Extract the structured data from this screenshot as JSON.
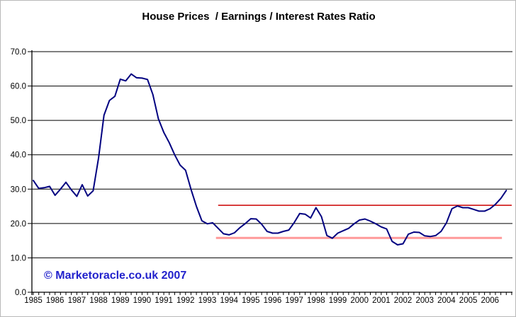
{
  "title": "House Prices  / Earnings / Interest Rates Ratio",
  "watermark": "© Marketoracle.co.uk 2007",
  "colors": {
    "series_line": "#000080",
    "resistance_line": "#cc0000",
    "support_line": "#ff9999",
    "gridline": "#000000",
    "axis": "#000000",
    "watermark_text": "#2222cc",
    "background": "#ffffff",
    "title_text": "#000000"
  },
  "chart_data": {
    "type": "line",
    "title": "House Prices  / Earnings / Interest Rates Ratio",
    "xlabel": "",
    "ylabel": "",
    "legend": "none",
    "grid": "horizontal",
    "x_axis": {
      "range": [
        1985.0,
        2007.0
      ],
      "tick_labels": [
        "1985",
        "1986",
        "1987",
        "1988",
        "1989",
        "1990",
        "1991",
        "1992",
        "1993",
        "1994",
        "1995",
        "1996",
        "1997",
        "1998",
        "1999",
        "2000",
        "2001",
        "2002",
        "2003",
        "2004",
        "2005",
        "2006"
      ],
      "minor_tick_interval_years": 0.25
    },
    "y_axis": {
      "range": [
        0,
        70
      ],
      "tick_labels": [
        "0.0",
        "10.0",
        "20.0",
        "30.0",
        "40.0",
        "50.0",
        "60.0",
        "70.0"
      ]
    },
    "series": [
      {
        "name": "house-prices-earnings-interest-rates-ratio",
        "color": "#000080",
        "stroke_width": 2,
        "x_start": 1985.0,
        "x_step": 0.25,
        "values": [
          32.5,
          30.2,
          30.4,
          30.8,
          28.2,
          30.0,
          32.0,
          29.8,
          27.9,
          31.3,
          28.0,
          29.5,
          39.0,
          51.5,
          55.8,
          57.0,
          62.0,
          61.5,
          63.5,
          62.4,
          62.3,
          61.9,
          57.5,
          50.5,
          46.5,
          43.5,
          40.0,
          37.0,
          35.5,
          30.0,
          25.0,
          20.8,
          19.9,
          20.2,
          18.6,
          17.0,
          16.7,
          17.3,
          18.8,
          20.0,
          21.4,
          21.3,
          19.8,
          17.7,
          17.2,
          17.2,
          17.7,
          18.1,
          20.3,
          22.9,
          22.7,
          21.6,
          24.6,
          22.0,
          16.5,
          15.7,
          17.2,
          17.9,
          18.6,
          19.9,
          21.0,
          21.3,
          20.7,
          19.9,
          19.0,
          18.4,
          14.8,
          13.8,
          14.1,
          16.9,
          17.5,
          17.4,
          16.4,
          16.2,
          16.5,
          17.7,
          20.2,
          24.3,
          25.1,
          24.6,
          24.6,
          24.1,
          23.6,
          23.6,
          24.3,
          25.6,
          27.3,
          29.6
        ]
      }
    ],
    "reference_lines": [
      {
        "name": "resistance",
        "value": 25.3,
        "x_start": 1993.5,
        "x_end": 2007.0,
        "color": "#cc0000",
        "stroke_width": 1.6
      },
      {
        "name": "support",
        "value": 15.8,
        "x_start": 1993.4,
        "x_end": 2006.55,
        "color": "#ff9999",
        "stroke_width": 3
      }
    ]
  }
}
